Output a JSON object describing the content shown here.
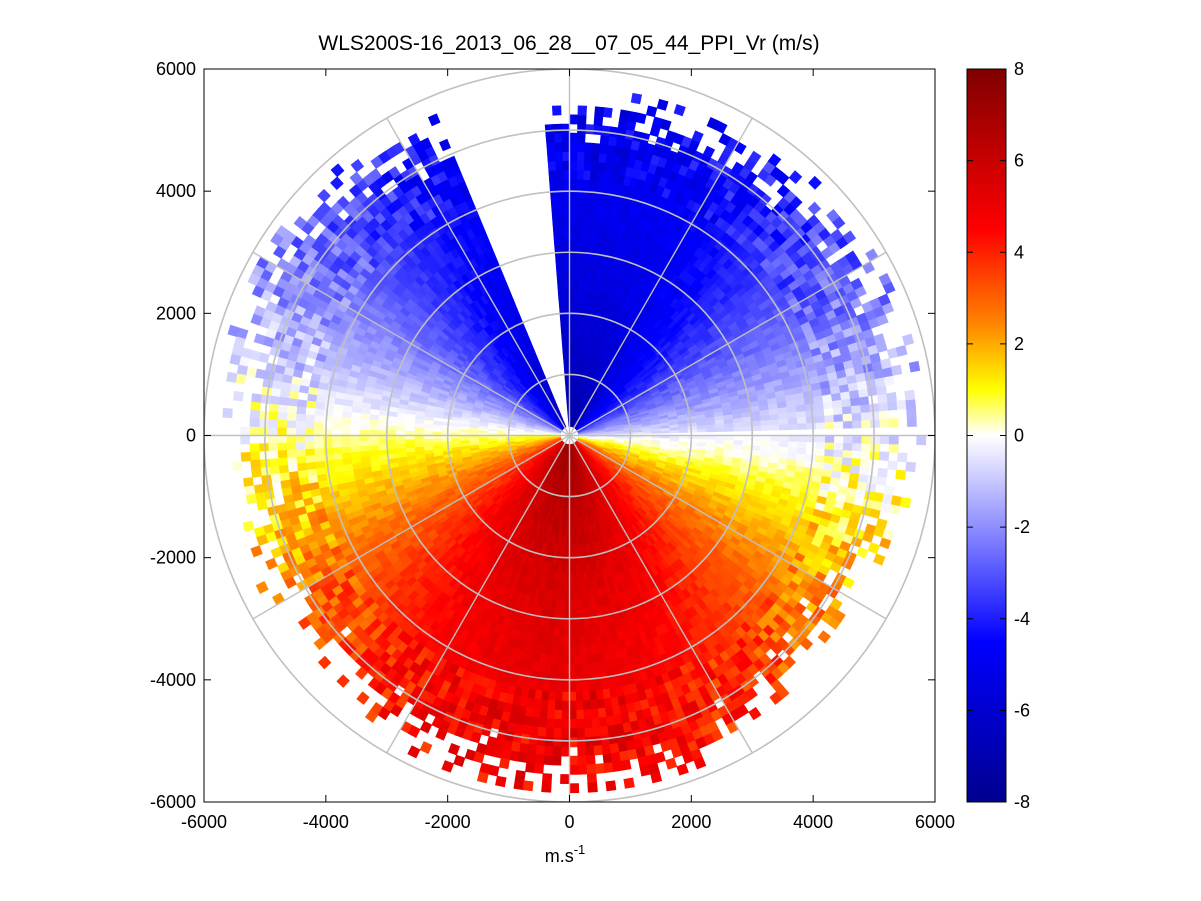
{
  "chart_data": {
    "type": "heatmap",
    "subtype": "polar-ppi",
    "title": "WLS200S-16_2013_06_28__07_05_44_PPI_Vr (m/s)",
    "xlabel_base": "m.s",
    "xlabel_exp": "-1",
    "ylabel": "",
    "xlim": [
      -6000,
      6000
    ],
    "ylim": [
      -6000,
      6000
    ],
    "x_ticks": [
      "-6000",
      "-4000",
      "-2000",
      "0",
      "2000",
      "4000",
      "6000"
    ],
    "y_ticks": [
      "6000",
      "4000",
      "2000",
      "0",
      "-2000",
      "-4000",
      "-6000"
    ],
    "polar_grid": {
      "ring_radii": [
        1000,
        2000,
        3000,
        4000,
        5000,
        6000
      ],
      "spoke_angles_deg": [
        0,
        30,
        60,
        90,
        120,
        150,
        180,
        210,
        240,
        270,
        300,
        330
      ]
    },
    "field_model": {
      "max_range": 5400,
      "peak_velocity": 7.5,
      "max_velocity_direction_deg": 266,
      "missing_sector_deg": [
        95,
        112
      ],
      "missing_sector_2_deg": [
        0,
        2
      ]
    },
    "colorbar": {
      "min": -8,
      "max": 8,
      "ticks": [
        "8",
        "6",
        "4",
        "2",
        "0",
        "-2",
        "-4",
        "-6",
        "-8"
      ],
      "colors": {
        "min": "#00008f",
        "neg_mid": "#0000ff",
        "zero_neg": "#ffffff",
        "zero_pos": "#ffffff",
        "yellow": "#ffff00",
        "orange": "#ff8000",
        "red": "#ff0000",
        "max": "#800000"
      }
    },
    "grid_color": "#c0c0c0"
  }
}
